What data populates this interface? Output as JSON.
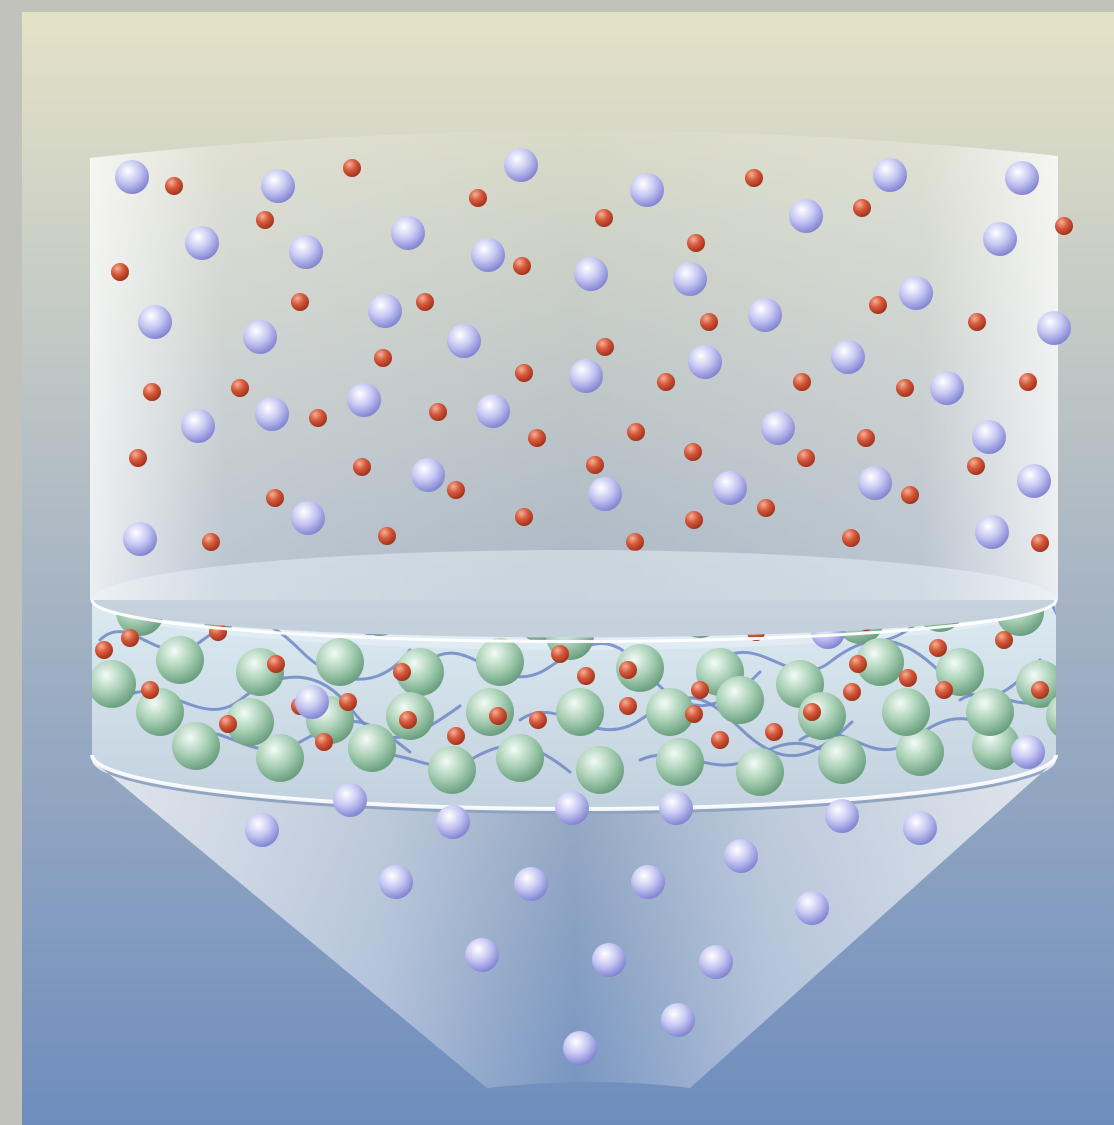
{
  "colors": {
    "frame": "#c2c2bc",
    "background_top": "#e4e2c6",
    "background_bottom": "#6e8dbd",
    "vessel": "#f4f6fa",
    "membrane_top": "#e2f0f6",
    "membrane_bottom": "#c8d6e2",
    "membrane_rim": "#ffffff",
    "large_sphere": "#a8a9e8",
    "small_sphere": "#d0553a",
    "bead": "#95c3a6",
    "polymer_chain": "#6f88c4"
  },
  "icons": {
    "vessel": "funnel-shape",
    "membrane": "disc-filter",
    "large_particle": "lavender-sphere",
    "small_particle": "red-sphere",
    "bead": "green-sphere",
    "chain": "wavy-line"
  }
}
